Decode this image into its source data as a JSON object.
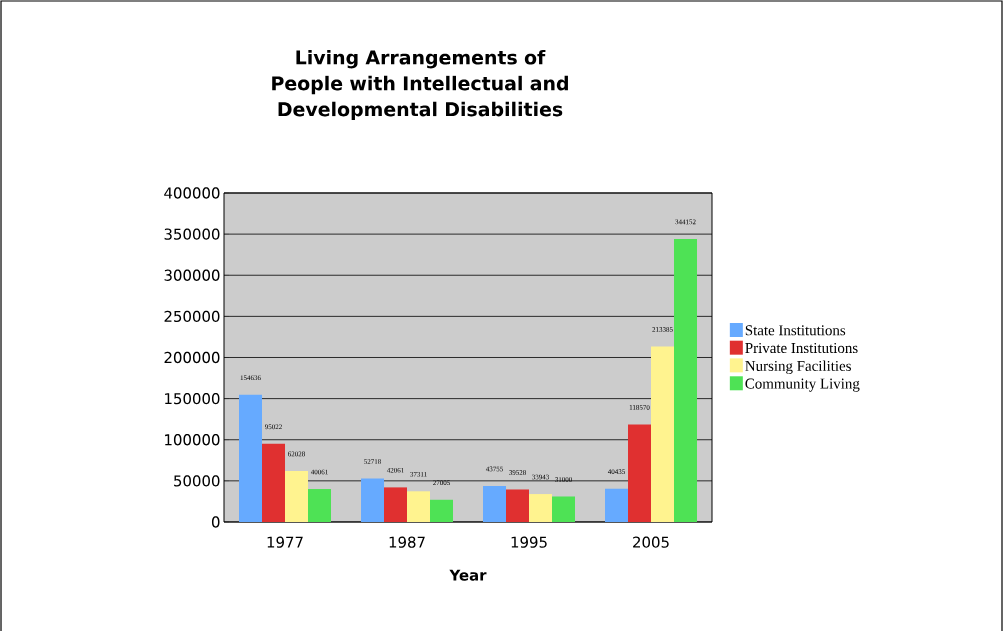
{
  "chart_data": {
    "type": "bar",
    "title": "Living Arrangements of People with Intellectual and Developmental Disabilities",
    "xlabel": "Year",
    "categories": [
      "1977",
      "1987",
      "1995",
      "2005"
    ],
    "series": [
      {
        "name": "State Institutions",
        "color": "#66aaff",
        "values": [
          154636,
          52718,
          43755,
          40435
        ]
      },
      {
        "name": "Private Institutions",
        "color": "#e03030",
        "values": [
          95022,
          42061,
          39528,
          118570
        ]
      },
      {
        "name": "Nursing Facilities",
        "color": "#fff38f",
        "values": [
          62028,
          37311,
          33943,
          213385
        ]
      },
      {
        "name": "Community Living",
        "color": "#4ee255",
        "values": [
          40061,
          27005,
          31000,
          344152
        ]
      }
    ],
    "ylim": [
      0,
      400000
    ],
    "yticks": [
      0,
      50000,
      100000,
      150000,
      200000,
      250000,
      300000,
      350000,
      400000
    ],
    "grid": "y",
    "legend": "right",
    "data_labels": true
  }
}
